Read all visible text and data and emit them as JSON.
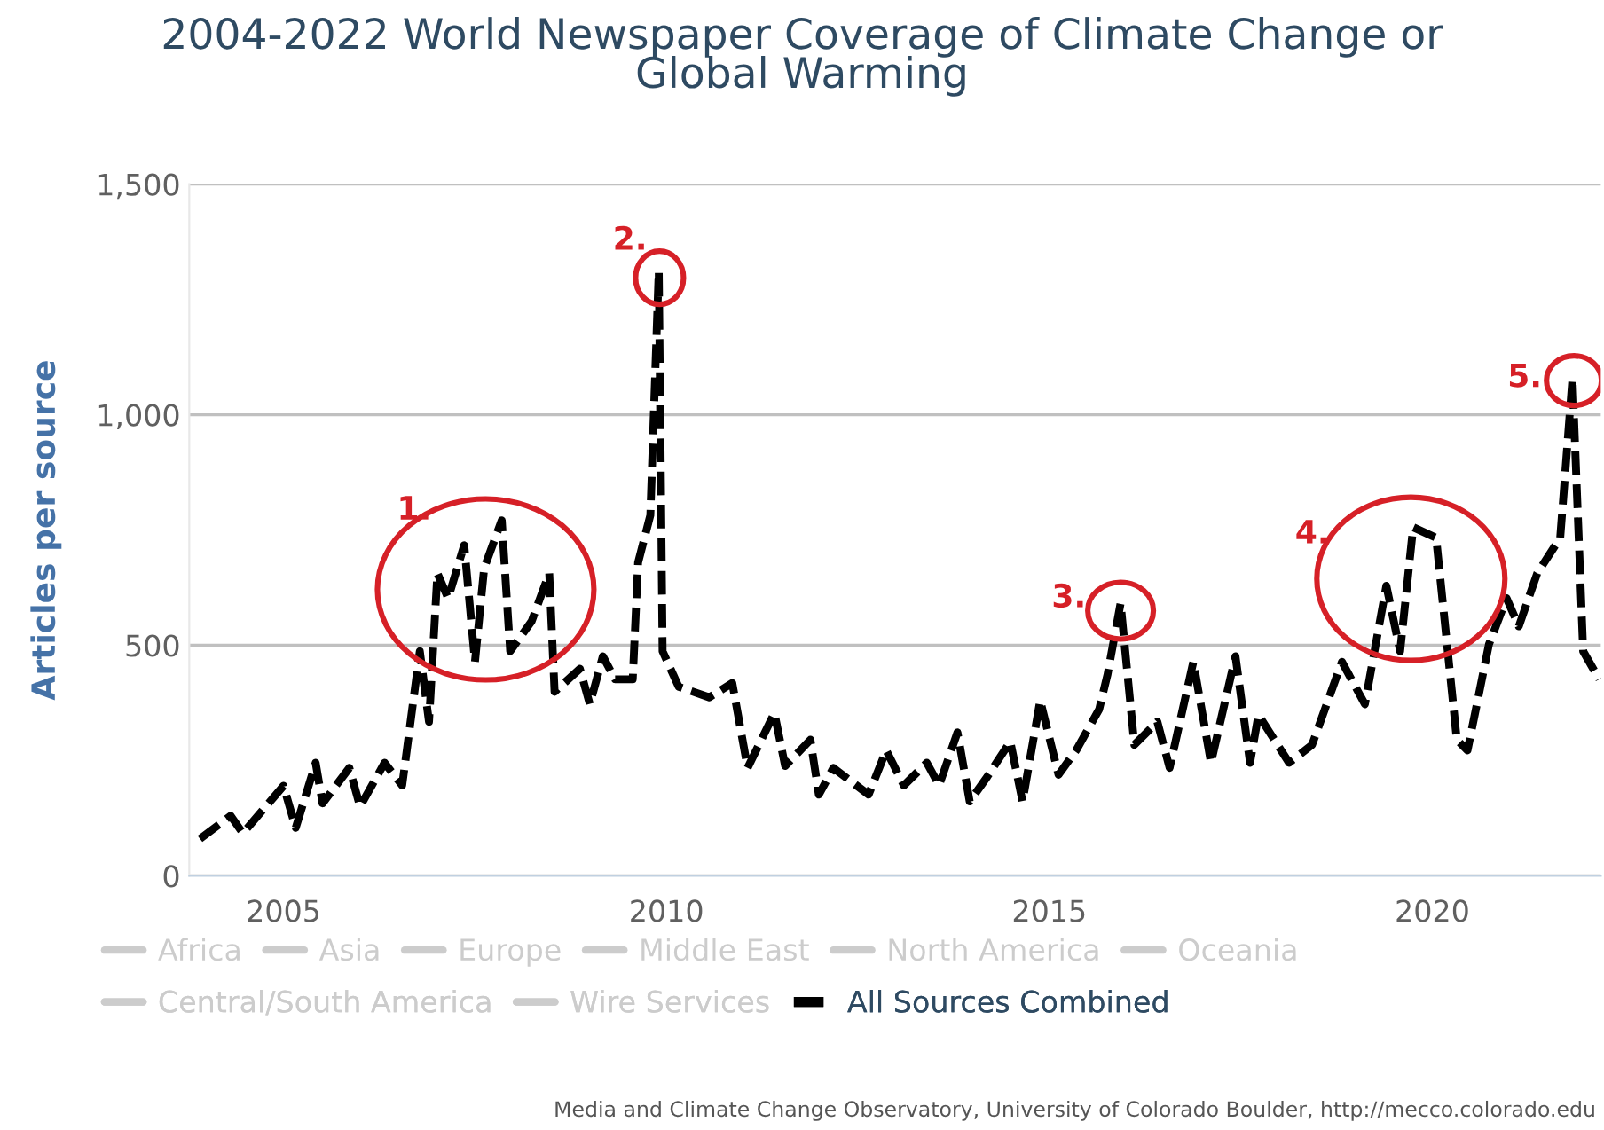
{
  "chart_data": {
    "type": "line",
    "title": "2004-2022 World Newspaper Coverage of Climate Change or\nGlobal Warming",
    "ylabel": "Articles per source",
    "x": [
      2003.91,
      2004.31,
      2004.47,
      2005.0,
      2005.16,
      2005.42,
      2005.51,
      2005.86,
      2006.0,
      2006.32,
      2006.55,
      2006.78,
      2006.9,
      2007.01,
      2007.15,
      2007.36,
      2007.5,
      2007.62,
      2007.85,
      2007.96,
      2008.24,
      2008.47,
      2008.54,
      2008.87,
      2009.0,
      2009.17,
      2009.33,
      2009.56,
      2009.63,
      2009.79,
      2009.9,
      2009.95,
      2010.16,
      2010.56,
      2010.86,
      2011.06,
      2011.41,
      2011.55,
      2011.88,
      2011.99,
      2012.18,
      2012.64,
      2012.87,
      2013.1,
      2013.4,
      2013.56,
      2013.8,
      2013.96,
      2014.19,
      2014.49,
      2014.65,
      2014.88,
      2015.12,
      2015.35,
      2015.65,
      2015.76,
      2015.93,
      2016.11,
      2016.41,
      2016.57,
      2016.88,
      2017.11,
      2017.43,
      2017.62,
      2017.73,
      2018.13,
      2018.43,
      2018.82,
      2019.12,
      2019.4,
      2019.58,
      2019.75,
      2020.05,
      2020.32,
      2020.46,
      2020.74,
      2020.97,
      2021.13,
      2021.37,
      2021.67,
      2021.83,
      2021.97,
      2022.18
    ],
    "series": [
      {
        "name": "Africa",
        "color": "#cccccc",
        "values": [
          null,
          null,
          null,
          null,
          null,
          null,
          null,
          null,
          null,
          null,
          null,
          null,
          null,
          null,
          null,
          null,
          null,
          null,
          null,
          null,
          null,
          null,
          null,
          null,
          null,
          null,
          null,
          null,
          null,
          null,
          null,
          null,
          null,
          null,
          null,
          null,
          null,
          null,
          null,
          null,
          null,
          null,
          null,
          null,
          null,
          null,
          null,
          null,
          null,
          null,
          null,
          null,
          null,
          null,
          null,
          null,
          null,
          null,
          null,
          null,
          null,
          null,
          null,
          null,
          null,
          null,
          null,
          null,
          null,
          null,
          null,
          null,
          null,
          null,
          null,
          null,
          null,
          null,
          null,
          null,
          null,
          null,
          null
        ]
      },
      {
        "name": "Asia",
        "color": "#cccccc",
        "values": [
          null,
          null,
          null,
          null,
          null,
          null,
          null,
          null,
          null,
          null,
          null,
          null,
          null,
          null,
          null,
          null,
          null,
          null,
          null,
          null,
          null,
          null,
          null,
          null,
          null,
          null,
          null,
          null,
          null,
          null,
          null,
          null,
          null,
          null,
          null,
          null,
          null,
          null,
          null,
          null,
          null,
          null,
          null,
          null,
          null,
          null,
          null,
          null,
          null,
          null,
          null,
          null,
          null,
          null,
          null,
          null,
          null,
          null,
          null,
          null,
          null,
          null,
          null,
          null,
          null,
          null,
          null,
          null,
          null,
          null,
          null,
          null,
          null,
          null,
          null,
          null,
          null,
          null,
          null,
          null,
          null,
          null,
          null
        ]
      },
      {
        "name": "Europe",
        "color": "#cccccc",
        "values": [
          null,
          null,
          null,
          null,
          null,
          null,
          null,
          null,
          null,
          null,
          null,
          null,
          null,
          null,
          null,
          null,
          null,
          null,
          null,
          null,
          null,
          null,
          null,
          null,
          null,
          null,
          null,
          null,
          null,
          null,
          null,
          null,
          null,
          null,
          null,
          null,
          null,
          null,
          null,
          null,
          null,
          null,
          null,
          null,
          null,
          null,
          null,
          null,
          null,
          null,
          null,
          null,
          null,
          null,
          null,
          null,
          null,
          null,
          null,
          null,
          null,
          null,
          null,
          null,
          null,
          null,
          null,
          null,
          null,
          null,
          null,
          null,
          null,
          null,
          null,
          null,
          null,
          null,
          null,
          null,
          null,
          null,
          null
        ]
      },
      {
        "name": "Middle East",
        "color": "#cccccc",
        "values": [
          null,
          null,
          null,
          null,
          null,
          null,
          null,
          null,
          null,
          null,
          null,
          null,
          null,
          null,
          null,
          null,
          null,
          null,
          null,
          null,
          null,
          null,
          null,
          null,
          null,
          null,
          null,
          null,
          null,
          null,
          null,
          null,
          null,
          null,
          null,
          null,
          null,
          null,
          null,
          null,
          null,
          null,
          null,
          null,
          null,
          null,
          null,
          null,
          null,
          null,
          null,
          null,
          null,
          null,
          null,
          null,
          null,
          null,
          null,
          null,
          null,
          null,
          null,
          null,
          null,
          null,
          null,
          null,
          null,
          null,
          null,
          null,
          null,
          null,
          null,
          null,
          null,
          null,
          null,
          null,
          null,
          null,
          null
        ]
      },
      {
        "name": "North America",
        "color": "#cccccc",
        "values": [
          null,
          null,
          null,
          null,
          null,
          null,
          null,
          null,
          null,
          null,
          null,
          null,
          null,
          null,
          null,
          null,
          null,
          null,
          null,
          null,
          null,
          null,
          null,
          null,
          null,
          null,
          null,
          null,
          null,
          null,
          null,
          null,
          null,
          null,
          null,
          null,
          null,
          null,
          null,
          null,
          null,
          null,
          null,
          null,
          null,
          null,
          null,
          null,
          null,
          null,
          null,
          null,
          null,
          null,
          null,
          null,
          null,
          null,
          null,
          null,
          null,
          null,
          null,
          null,
          null,
          null,
          null,
          null,
          null,
          null,
          null,
          null,
          null,
          null,
          null,
          null,
          null,
          null,
          null,
          null,
          null,
          null,
          null
        ]
      },
      {
        "name": "Oceania",
        "color": "#cccccc",
        "values": [
          null,
          null,
          null,
          null,
          null,
          null,
          null,
          null,
          null,
          null,
          null,
          null,
          null,
          null,
          null,
          null,
          null,
          null,
          null,
          null,
          null,
          null,
          null,
          null,
          null,
          null,
          null,
          null,
          null,
          null,
          null,
          null,
          null,
          null,
          null,
          null,
          null,
          null,
          null,
          null,
          null,
          null,
          null,
          null,
          null,
          null,
          null,
          null,
          null,
          null,
          null,
          null,
          null,
          null,
          null,
          null,
          null,
          null,
          null,
          null,
          null,
          null,
          null,
          null,
          null,
          null,
          null,
          null,
          null,
          null,
          null,
          null,
          null,
          null,
          null,
          null,
          null,
          null,
          null,
          null,
          null,
          null,
          null
        ]
      },
      {
        "name": "Central/South America",
        "color": "#cccccc",
        "values": [
          null,
          null,
          null,
          null,
          null,
          null,
          null,
          null,
          null,
          null,
          null,
          null,
          null,
          null,
          null,
          null,
          null,
          null,
          null,
          null,
          null,
          null,
          null,
          null,
          null,
          null,
          null,
          null,
          null,
          null,
          null,
          null,
          null,
          null,
          null,
          null,
          null,
          null,
          null,
          null,
          null,
          null,
          null,
          null,
          null,
          null,
          null,
          null,
          null,
          null,
          null,
          null,
          null,
          null,
          null,
          null,
          null,
          null,
          null,
          null,
          null,
          null,
          null,
          null,
          null,
          null,
          null,
          null,
          null,
          null,
          null,
          null,
          null,
          null,
          null,
          null,
          null,
          null,
          null,
          null,
          null,
          null,
          null
        ]
      },
      {
        "name": "Wire Services",
        "color": "#cccccc",
        "values": [
          null,
          null,
          null,
          null,
          null,
          null,
          null,
          null,
          null,
          null,
          null,
          null,
          null,
          null,
          null,
          null,
          null,
          null,
          null,
          null,
          null,
          null,
          null,
          null,
          null,
          null,
          null,
          null,
          null,
          null,
          null,
          null,
          null,
          null,
          null,
          null,
          null,
          null,
          null,
          null,
          null,
          null,
          null,
          null,
          null,
          null,
          null,
          null,
          null,
          null,
          null,
          null,
          null,
          null,
          null,
          null,
          null,
          null,
          null,
          null,
          null,
          null,
          null,
          null,
          null,
          null,
          null,
          null,
          null,
          null,
          null,
          null,
          null,
          null,
          null,
          null,
          null,
          null,
          null,
          null,
          null,
          null,
          null
        ]
      },
      {
        "name": "All Sources Combined",
        "color": "#000000",
        "line_style": "dashed",
        "values": [
          80,
          130,
          92,
          195,
          104,
          245,
          157,
          234,
          150,
          245,
          196,
          487,
          334,
          656,
          602,
          717,
          464,
          667,
          771,
          487,
          552,
          656,
          399,
          449,
          372,
          476,
          426,
          426,
          679,
          782,
          1312,
          487,
          410,
          387,
          418,
          234,
          353,
          238,
          295,
          176,
          234,
          176,
          272,
          196,
          245,
          196,
          311,
          161,
          215,
          291,
          161,
          380,
          219,
          272,
          361,
          437,
          591,
          284,
          334,
          234,
          464,
          245,
          476,
          245,
          349,
          245,
          284,
          464,
          372,
          629,
          487,
          756,
          733,
          295,
          272,
          502,
          602,
          541,
          656,
          733,
          1078,
          487,
          426
        ]
      }
    ],
    "xlim": [
      2003.77,
      2022.2
    ],
    "xticks": [
      2005,
      2010,
      2015,
      2020
    ],
    "ylim": [
      0,
      1500
    ],
    "yticks": [
      0,
      {
        "value": 500,
        "label": "500"
      },
      {
        "value": 1000,
        "label": "1,000"
      },
      {
        "value": 1500,
        "label": "1,500"
      }
    ],
    "grid": "y",
    "legend": "bottom",
    "annotations": [
      {
        "text": "1.",
        "x": 2007.64,
        "y": 621
      },
      {
        "text": "2.",
        "x": 2009.91,
        "y": 1297
      },
      {
        "text": "3.",
        "x": 2015.93,
        "y": 575
      },
      {
        "text": "4.",
        "x": 2019.72,
        "y": 644
      },
      {
        "text": "5.",
        "x": 2021.85,
        "y": 1074
      },
      "Media and Climate Change Observatory, University of Colorado Boulder, http://mecco.colorado.edu"
    ]
  }
}
